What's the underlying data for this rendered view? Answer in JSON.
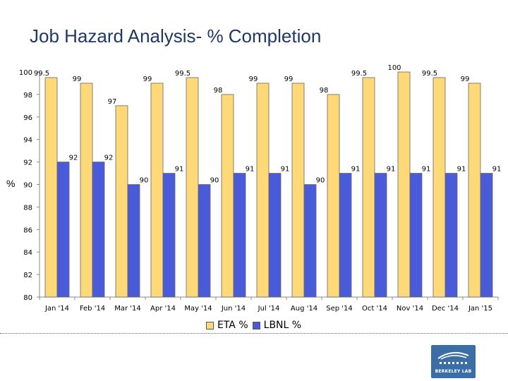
{
  "chart_data": {
    "type": "bar",
    "title": "Job Hazard Analysis- % Completion",
    "xlabel": "",
    "ylabel": "%",
    "ylim": [
      80,
      100
    ],
    "yticks": [
      80,
      82,
      84,
      86,
      88,
      90,
      92,
      94,
      96,
      98,
      100
    ],
    "categories": [
      "Jan '14",
      "Feb '14",
      "Mar '14",
      "Apr '14",
      "May '14",
      "Jun '14",
      "Jul '14",
      "Aug '14",
      "Sep '14",
      "Oct '14",
      "Nov '14",
      "Dec '14",
      "Jan '15"
    ],
    "series": [
      {
        "name": "ETA %",
        "color": "#FFD878",
        "values": [
          99.5,
          99,
          97,
          99,
          99.5,
          98,
          99,
          99,
          98,
          99.5,
          100,
          99.5,
          99
        ]
      },
      {
        "name": "LBNL %",
        "color": "#4A5BD9",
        "values": [
          92,
          92,
          90,
          91,
          90,
          91,
          91,
          90,
          91,
          91,
          91,
          91,
          91
        ]
      }
    ],
    "legend_position": "bottom"
  },
  "logo": {
    "text": "BERKELEY LAB",
    "color": "#3A6EA5"
  }
}
